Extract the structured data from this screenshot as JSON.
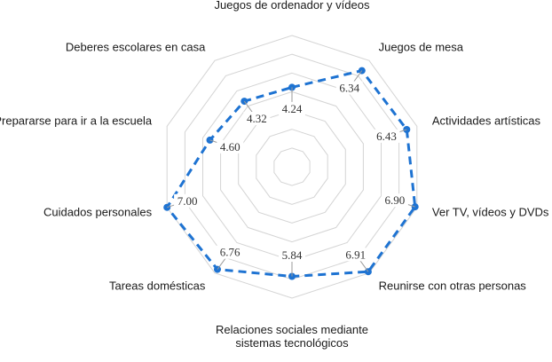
{
  "chart_data": {
    "type": "radar",
    "categories": [
      "Juegos de ordenador y vídeos",
      "Juegos de mesa",
      "Actividades artísticas",
      "Ver TV, vídeos y DVDs",
      "Reunirse con otras personas",
      "Relaciones sociales mediante sistemas tecnológicos",
      "Tareas domésticas",
      "Cuidados personales",
      "Prepararse para ir a la escuela",
      "Deberes escolares en casa"
    ],
    "category_lines": [
      [
        "Juegos de ordenador y vídeos"
      ],
      [
        "Juegos de mesa"
      ],
      [
        "Actividades artísticas"
      ],
      [
        "Ver TV, vídeos y DVDs"
      ],
      [
        "Reunirse con otras personas"
      ],
      [
        "Relaciones sociales mediante",
        "sistemas tecnológicos"
      ],
      [
        "Tareas domésticas"
      ],
      [
        "Cuidados personales"
      ],
      [
        "Prepararse para ir a la escuela"
      ],
      [
        "Deberes escolares en casa"
      ]
    ],
    "values": [
      4.24,
      6.34,
      6.43,
      6.9,
      6.91,
      5.84,
      6.76,
      7.0,
      4.6,
      4.32
    ],
    "value_labels": [
      "4.24",
      "6.34",
      "6.43",
      "6.90",
      "6.91",
      "5.84",
      "6.76",
      "7.00",
      "4.60",
      "4.32"
    ],
    "rlim": [
      0,
      7
    ],
    "grid_rings": 7,
    "grid": true,
    "legend": "none",
    "series_color": "#1e73d2",
    "grid_color": "#d4d4d4"
  }
}
